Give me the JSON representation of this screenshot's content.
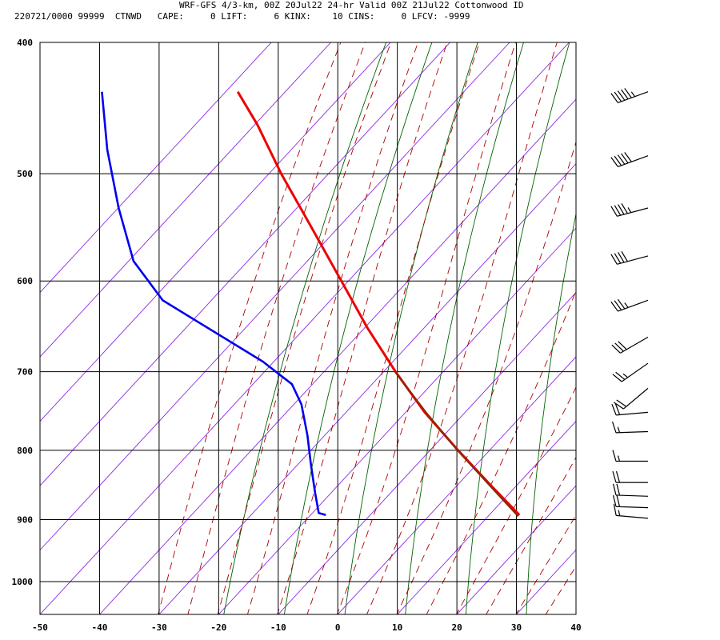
{
  "header": {
    "line1": "WRF-GFS 4/3-km, 00Z 20Jul22 24-hr Valid 00Z 21Jul22 Cottonwood ID",
    "line2": "220721/0000 99999  CTNWD   CAPE:     0 LIFT:     6 KINX:    10 CINS:     0 LFCV: -9999"
  },
  "chart_data": {
    "type": "skew-t",
    "title": "WRF-GFS 4/3-km, 00Z 20Jul22 24-hr Valid 00Z 21Jul22 Cottonwood ID",
    "xlim": [
      -50,
      40
    ],
    "ylim": [
      1040,
      400
    ],
    "y_scale": "log",
    "grid": true,
    "x_ticks": [
      "-50",
      "-40",
      "-30",
      "-20",
      "-10",
      "0",
      "10",
      "20",
      "30",
      "40"
    ],
    "y_ticks": [
      "400",
      "500",
      "600",
      "700",
      "800",
      "900",
      "1000"
    ],
    "colors": {
      "temperature": "#ee0000",
      "parcel": "#8b2a00",
      "dewpoint": "#0000ee",
      "dry_adiabat": "#006400",
      "moist_adiabat": "#aa0000",
      "isotherm": "#8a2be2",
      "grid": "#000000"
    },
    "series": [
      {
        "key": "temperature",
        "points": [
          {
            "p": 893,
            "x": 30.5
          },
          {
            "p": 850,
            "x": 25.8
          },
          {
            "p": 800,
            "x": 20.2
          },
          {
            "p": 750,
            "x": 14.6
          },
          {
            "p": 700,
            "x": 9.7
          },
          {
            "p": 650,
            "x": 5.0
          },
          {
            "p": 600,
            "x": 0.6
          },
          {
            "p": 550,
            "x": -4.2
          },
          {
            "p": 500,
            "x": -9.5
          },
          {
            "p": 460,
            "x": -13.5
          },
          {
            "p": 435,
            "x": -16.8
          }
        ]
      },
      {
        "key": "dewpoint",
        "points": [
          {
            "p": 893,
            "x": -2.0
          },
          {
            "p": 890,
            "x": -3.2
          },
          {
            "p": 860,
            "x": -3.8
          },
          {
            "p": 820,
            "x": -4.5
          },
          {
            "p": 780,
            "x": -5.1
          },
          {
            "p": 740,
            "x": -6.1
          },
          {
            "p": 715,
            "x": -7.7
          },
          {
            "p": 688,
            "x": -12.6
          },
          {
            "p": 620,
            "x": -29.4
          },
          {
            "p": 580,
            "x": -34.3
          },
          {
            "p": 530,
            "x": -36.8
          },
          {
            "p": 480,
            "x": -38.7
          },
          {
            "p": 435,
            "x": -39.6
          }
        ]
      },
      {
        "key": "parcel",
        "points": [
          {
            "p": 895,
            "x": 30.3
          },
          {
            "p": 850,
            "x": 25.6
          },
          {
            "p": 800,
            "x": 20.1
          },
          {
            "p": 750,
            "x": 14.8
          },
          {
            "p": 700,
            "x": 9.6
          }
        ]
      }
    ],
    "wind_barbs": [
      {
        "p": 435,
        "dir": 250,
        "speed": 55
      },
      {
        "p": 485,
        "dir": 250,
        "speed": 50
      },
      {
        "p": 530,
        "dir": 255,
        "speed": 45
      },
      {
        "p": 575,
        "dir": 255,
        "speed": 40
      },
      {
        "p": 620,
        "dir": 250,
        "speed": 35
      },
      {
        "p": 660,
        "dir": 240,
        "speed": 30
      },
      {
        "p": 690,
        "dir": 235,
        "speed": 25
      },
      {
        "p": 720,
        "dir": 230,
        "speed": 20
      },
      {
        "p": 750,
        "dir": 265,
        "speed": 20
      },
      {
        "p": 775,
        "dir": 268,
        "speed": 15
      },
      {
        "p": 815,
        "dir": 270,
        "speed": 15
      },
      {
        "p": 845,
        "dir": 270,
        "speed": 20
      },
      {
        "p": 865,
        "dir": 272,
        "speed": 20
      },
      {
        "p": 882,
        "dir": 272,
        "speed": 20
      },
      {
        "p": 898,
        "dir": 275,
        "speed": 15
      }
    ]
  }
}
